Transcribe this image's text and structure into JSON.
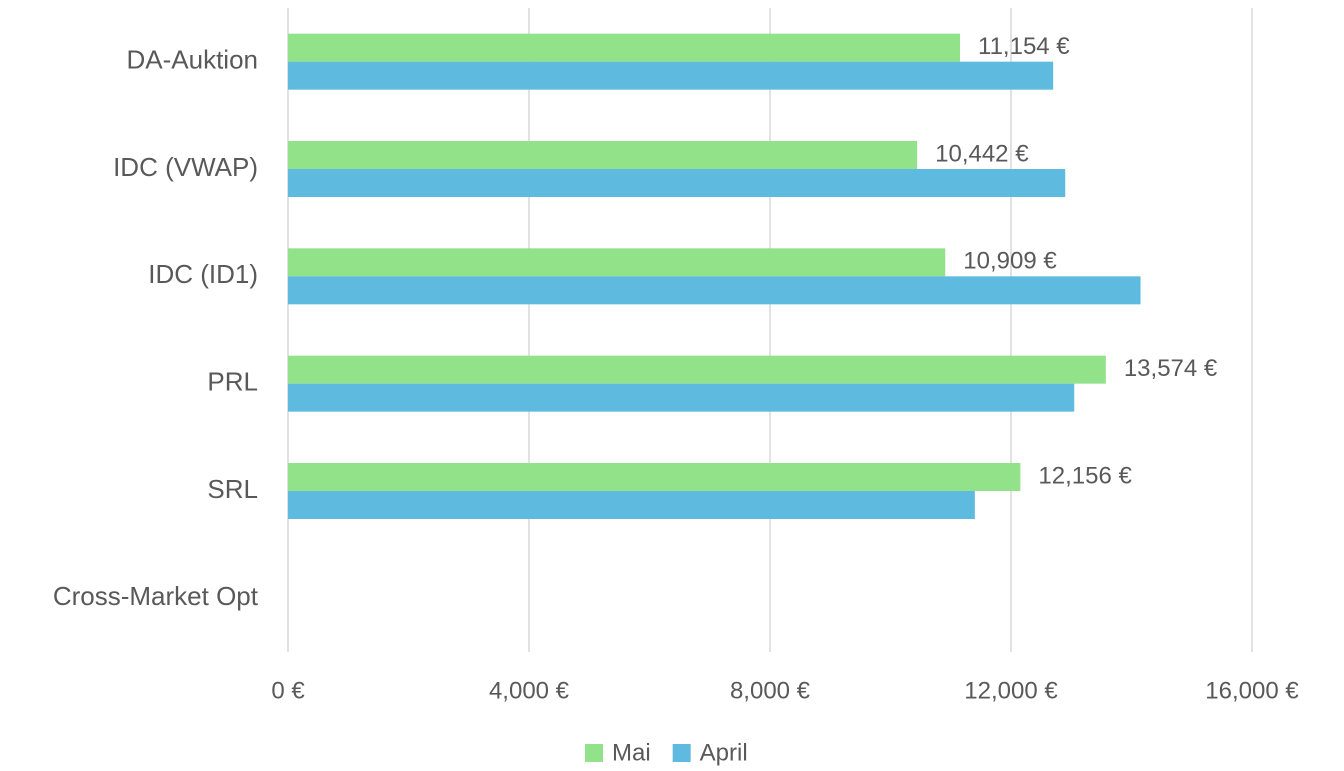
{
  "chart_data": {
    "type": "bar",
    "orientation": "horizontal",
    "categories": [
      "DA-Auktion",
      "IDC (VWAP)",
      "IDC (ID1)",
      "PRL",
      "SRL",
      "Cross-Market Opt"
    ],
    "series": [
      {
        "name": "Mai",
        "color": "#92e28a",
        "values": [
          11154,
          10442,
          10909,
          13574,
          12156,
          null
        ],
        "value_labels": [
          "11,154 €",
          "10,442 €",
          "10,909 €",
          "13,574 €",
          "12,156 €",
          null
        ]
      },
      {
        "name": "April",
        "color": "#5ebbdf",
        "values": [
          12700,
          12900,
          14150,
          13050,
          11400,
          null
        ]
      }
    ],
    "xlim": [
      0,
      16000
    ],
    "xticks": [
      {
        "value": 0,
        "label": "0 €"
      },
      {
        "value": 4000,
        "label": "4,000 €"
      },
      {
        "value": 8000,
        "label": "8,000 €"
      },
      {
        "value": 12000,
        "label": "12,000 €"
      },
      {
        "value": 16000,
        "label": "16,000 €"
      }
    ],
    "grid": true,
    "legend": "bottom"
  }
}
